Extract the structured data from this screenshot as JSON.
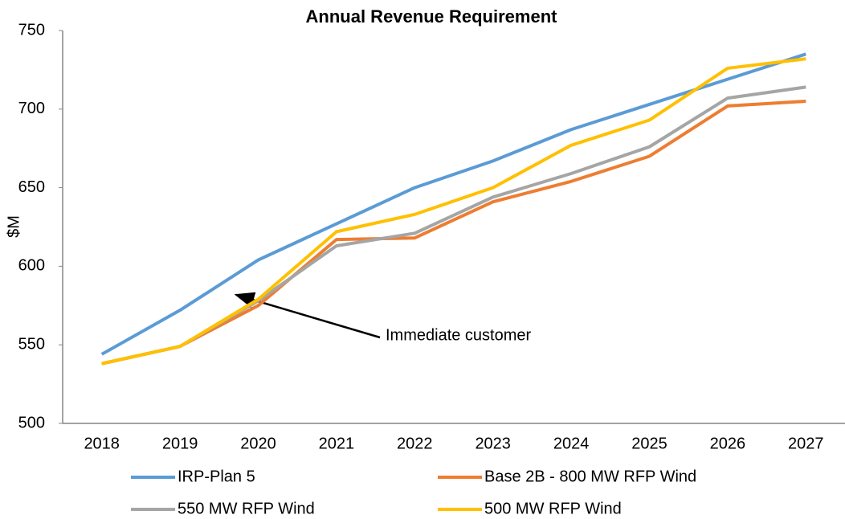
{
  "chart_data": {
    "type": "line",
    "title": "Annual Revenue Requirement",
    "y_label": "$M",
    "annotation": "Immediate customer",
    "categories": [
      "2018",
      "2019",
      "2020",
      "2021",
      "2022",
      "2023",
      "2024",
      "2025",
      "2026",
      "2027"
    ],
    "series": [
      {
        "name": "IRP-Plan 5",
        "color": "#5b9bd5",
        "values": [
          544,
          572,
          604,
          627,
          650,
          667,
          687,
          703,
          719,
          735
        ]
      },
      {
        "name": "Base 2B - 800 MW RFP Wind",
        "color": "#ed7d31",
        "values": [
          538,
          549,
          575,
          617,
          618,
          641,
          654,
          670,
          702,
          705
        ]
      },
      {
        "name": "550 MW RFP Wind",
        "color": "#a5a5a5",
        "values": [
          538,
          549,
          578,
          613,
          621,
          644,
          659,
          676,
          707,
          714
        ]
      },
      {
        "name": "500 MW RFP Wind",
        "color": "#ffc000",
        "values": [
          538,
          549,
          579,
          622,
          633,
          650,
          677,
          693,
          726,
          732
        ]
      }
    ],
    "ylim": [
      500,
      750
    ],
    "yticks": [
      500,
      550,
      600,
      650,
      700,
      750
    ],
    "grid": false,
    "legend": "bottom"
  }
}
